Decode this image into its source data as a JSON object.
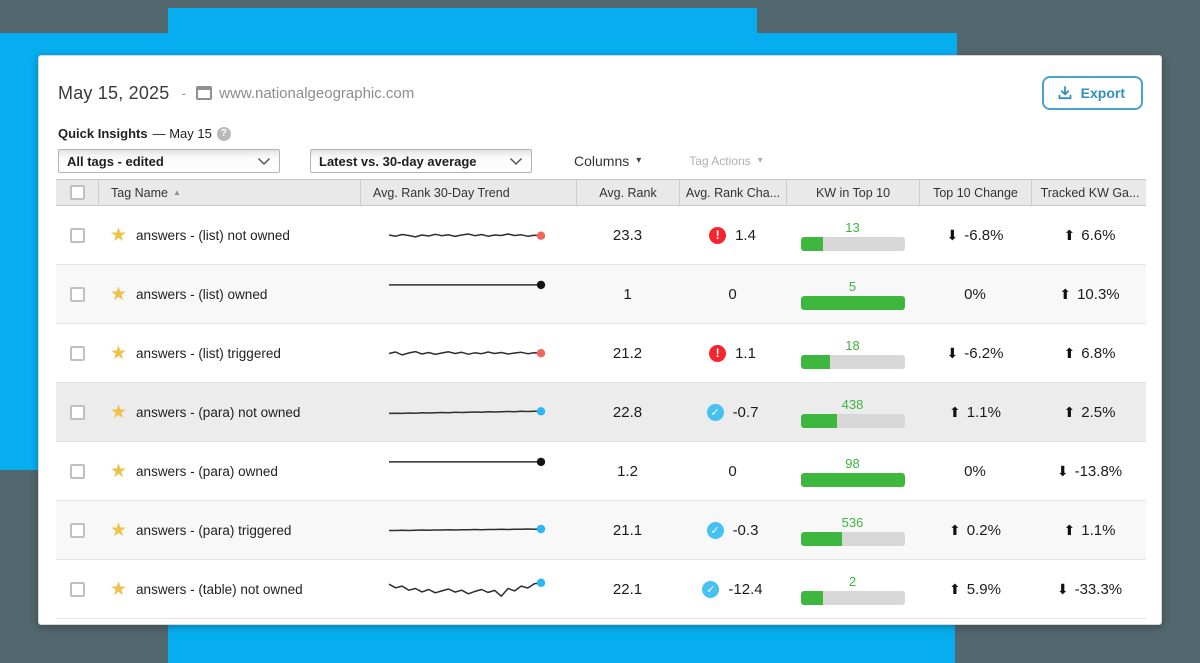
{
  "colors": {
    "backdrop_base": "#53676e",
    "backdrop_accent": "#06aef0",
    "bar_green": "#3eb73e",
    "alert_red": "#f2262c",
    "check_blue": "#47c0f2",
    "star_gold": "#efc14b",
    "export_blue": "#2e91bd",
    "spark_dot_red": "#f4655c",
    "spark_dot_black": "#151515",
    "spark_dot_blue": "#2ab5f5"
  },
  "icons": {
    "star_glyph": "★",
    "alert_glyph": "!",
    "check_glyph": "✓",
    "arrow_up_glyph": "⬆",
    "arrow_down_glyph": "⬇",
    "sort_asc_glyph": "▲",
    "caret_glyph": "▾",
    "help_glyph": "?"
  },
  "header": {
    "date": "May 15, 2025",
    "separator": "-",
    "site_url": "www.nationalgeographic.com",
    "export_label": "Export"
  },
  "insights": {
    "title": "Quick Insights",
    "subtitle": "— May 15"
  },
  "filters": {
    "tag_filter_value": "All tags - edited",
    "compare_filter_value": "Latest vs. 30-day average",
    "columns_label": "Columns",
    "tag_actions_label": "Tag Actions"
  },
  "table": {
    "columns": [
      "Tag Name",
      "Avg. Rank 30-Day Trend",
      "Avg. Rank",
      "Avg. Rank Cha...",
      "KW in Top 10",
      "Top 10 Change",
      "Tracked KW Ga..."
    ],
    "sorted_column": "Tag Name",
    "rows": [
      {
        "name": "answers - (list) not owned",
        "avg_rank": "23.3",
        "rank_change": "1.4",
        "change_icon": "alert",
        "kw_top10": "13",
        "bar_pct": 22,
        "top10_change": "-6.8%",
        "top10_dir": "down",
        "tracked_change": "6.6%",
        "tracked_dir": "up",
        "selected": false,
        "spark": {
          "dot": "#f4655c",
          "points": [
            0.5,
            0.55,
            0.48,
            0.52,
            0.58,
            0.5,
            0.54,
            0.47,
            0.53,
            0.49,
            0.56,
            0.5,
            0.46,
            0.53,
            0.48,
            0.55,
            0.5,
            0.52,
            0.46,
            0.52,
            0.49,
            0.55,
            0.51,
            0.53
          ]
        }
      },
      {
        "name": "answers - (list) owned",
        "avg_rank": "1",
        "rank_change": "0",
        "change_icon": "none",
        "kw_top10": "5",
        "bar_pct": 100,
        "top10_change": "0%",
        "top10_dir": "none",
        "tracked_change": "10.3%",
        "tracked_dir": "up",
        "selected": false,
        "spark": {
          "dot": "#151515",
          "points": [
            0.12,
            0.12
          ]
        }
      },
      {
        "name": "answers - (list) triggered",
        "avg_rank": "21.2",
        "rank_change": "1.1",
        "change_icon": "alert",
        "kw_top10": "18",
        "bar_pct": 28,
        "top10_change": "-6.2%",
        "top10_dir": "down",
        "tracked_change": "6.8%",
        "tracked_dir": "up",
        "selected": false,
        "spark": {
          "dot": "#f4655c",
          "points": [
            0.52,
            0.46,
            0.58,
            0.5,
            0.44,
            0.54,
            0.48,
            0.56,
            0.5,
            0.45,
            0.52,
            0.47,
            0.55,
            0.49,
            0.53,
            0.46,
            0.52,
            0.48,
            0.54,
            0.5,
            0.47,
            0.53,
            0.49,
            0.51
          ]
        }
      },
      {
        "name": "answers - (para) not owned",
        "avg_rank": "22.8",
        "rank_change": "-0.7",
        "change_icon": "check",
        "kw_top10": "438",
        "bar_pct": 35,
        "top10_change": "1.1%",
        "top10_dir": "up",
        "tracked_change": "2.5%",
        "tracked_dir": "up",
        "selected": true,
        "spark": {
          "dot": "#2ab5f5",
          "points": [
            0.56,
            0.55,
            0.56,
            0.54,
            0.55,
            0.53,
            0.54,
            0.53,
            0.52,
            0.53,
            0.51,
            0.52,
            0.51,
            0.5,
            0.51,
            0.49,
            0.5,
            0.49,
            0.48,
            0.49,
            0.47,
            0.48,
            0.47,
            0.47
          ]
        }
      },
      {
        "name": "answers - (para) owned",
        "avg_rank": "1.2",
        "rank_change": "0",
        "change_icon": "none",
        "kw_top10": "98",
        "bar_pct": 100,
        "top10_change": "0%",
        "top10_dir": "none",
        "tracked_change": "-13.8%",
        "tracked_dir": "down",
        "selected": false,
        "spark": {
          "dot": "#151515",
          "points": [
            0.12,
            0.12
          ]
        }
      },
      {
        "name": "answers - (para) triggered",
        "avg_rank": "21.1",
        "rank_change": "-0.3",
        "change_icon": "check",
        "kw_top10": "536",
        "bar_pct": 40,
        "top10_change": "0.2%",
        "top10_dir": "up",
        "tracked_change": "1.1%",
        "tracked_dir": "up",
        "selected": false,
        "spark": {
          "dot": "#2ab5f5",
          "points": [
            0.52,
            0.52,
            0.51,
            0.52,
            0.51,
            0.5,
            0.51,
            0.5,
            0.5,
            0.49,
            0.5,
            0.49,
            0.49,
            0.48,
            0.49,
            0.48,
            0.48,
            0.47,
            0.48,
            0.47,
            0.47,
            0.46,
            0.47,
            0.46
          ]
        }
      },
      {
        "name": "answers - (table) not owned",
        "avg_rank": "22.1",
        "rank_change": "-12.4",
        "change_icon": "check",
        "kw_top10": "2",
        "bar_pct": 22,
        "top10_change": "5.9%",
        "top10_dir": "up",
        "tracked_change": "-33.3%",
        "tracked_dir": "down",
        "selected": false,
        "spark": {
          "dot": "#2ab5f5",
          "points": [
            0.3,
            0.45,
            0.38,
            0.55,
            0.48,
            0.62,
            0.52,
            0.66,
            0.58,
            0.5,
            0.63,
            0.55,
            0.7,
            0.6,
            0.52,
            0.64,
            0.56,
            0.8,
            0.48,
            0.58,
            0.38,
            0.46,
            0.28,
            0.24
          ]
        }
      }
    ]
  }
}
